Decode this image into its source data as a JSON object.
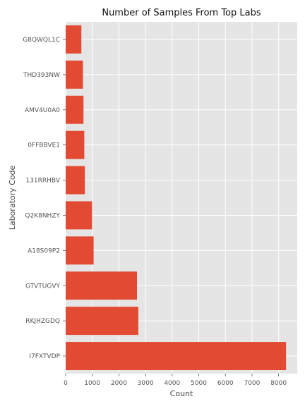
{
  "chart_data": {
    "type": "bar",
    "orientation": "horizontal",
    "title": "Number of Samples From Top Labs",
    "xlabel": "Count",
    "ylabel": "Laboratory Code",
    "categories": [
      "I7FXTVDP",
      "RKJHZGDQ",
      "GTVTUGVY",
      "A18S09P2",
      "Q2K8NHZY",
      "131RRHBV",
      "0FFBBVE1",
      "AMV4U0A0",
      "THD393NW",
      "G8QWQL1C"
    ],
    "values": [
      8280,
      2730,
      2680,
      1050,
      990,
      720,
      700,
      670,
      650,
      590
    ],
    "xlim": [
      0,
      8700
    ],
    "xticks": [
      0,
      1000,
      2000,
      3000,
      4000,
      5000,
      6000,
      7000,
      8000
    ],
    "grid": true,
    "colors": {
      "bar": "#E24A33",
      "plot_background": "#E5E5E5",
      "grid": "#FFFFFF"
    }
  }
}
